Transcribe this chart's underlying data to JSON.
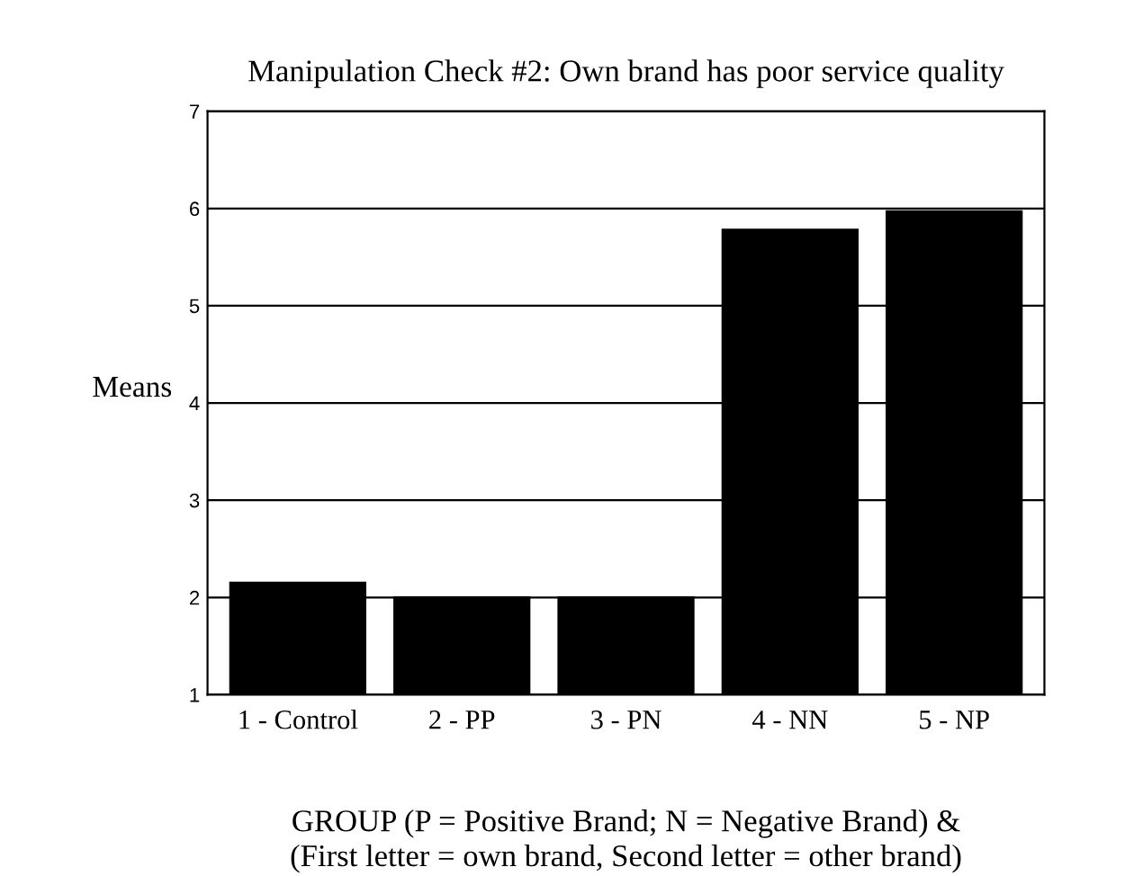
{
  "chart_data": {
    "type": "bar",
    "title": "Manipulation Check #2: Own brand has poor service quality",
    "ylabel": "Means",
    "xlabel": "GROUP (P = Positive Brand; N = Negative Brand) &\n(First letter = own brand, Second letter = other brand)",
    "categories": [
      "1 - Control",
      "2 - PP",
      "3 - PN",
      "4 - NN",
      "5 - NP"
    ],
    "values": [
      2.15,
      2.0,
      2.0,
      5.78,
      5.97
    ],
    "color": "#000000",
    "ylim": [
      1,
      7
    ],
    "yticks": [
      1,
      2,
      3,
      4,
      5,
      6,
      7
    ],
    "grid": "y"
  }
}
